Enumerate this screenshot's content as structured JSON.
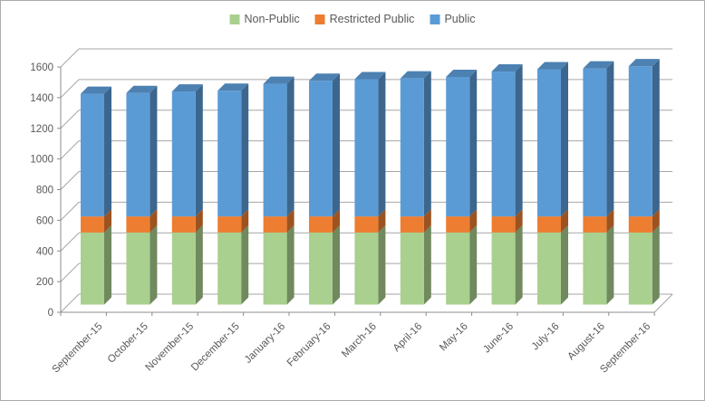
{
  "chart_data": {
    "type": "bar",
    "subtype": "stacked-column-3d",
    "title": "",
    "xlabel": "",
    "ylabel": "",
    "categories": [
      "September-15",
      "October-15",
      "November-15",
      "December-15",
      "January-16",
      "February-16",
      "March-16",
      "April-16",
      "May-16",
      "June-16",
      "July-16",
      "August-16",
      "September-16"
    ],
    "series": [
      {
        "name": "Non-Public",
        "color": "#A9D08E",
        "values": [
          470,
          470,
          470,
          470,
          470,
          470,
          470,
          470,
          470,
          470,
          470,
          470,
          470
        ]
      },
      {
        "name": "Restricted Public",
        "color": "#ED7D31",
        "values": [
          105,
          105,
          105,
          105,
          105,
          105,
          105,
          105,
          105,
          105,
          105,
          105,
          105
        ]
      },
      {
        "name": "Public",
        "color": "#5B9BD5",
        "values": [
          800,
          805,
          815,
          820,
          865,
          885,
          895,
          900,
          910,
          945,
          960,
          965,
          980
        ]
      }
    ],
    "totals": [
      1375,
      1380,
      1390,
      1395,
      1440,
      1460,
      1470,
      1475,
      1485,
      1520,
      1535,
      1540,
      1555
    ],
    "ylim": [
      0,
      1600
    ],
    "yticks": [
      0,
      200,
      400,
      600,
      800,
      1000,
      1200,
      1400,
      1600
    ],
    "grid": true,
    "legend_position": "top",
    "gridline_color": "#a6a6a6",
    "axis_color": "#8c8c8c",
    "label_color": "#595959"
  }
}
